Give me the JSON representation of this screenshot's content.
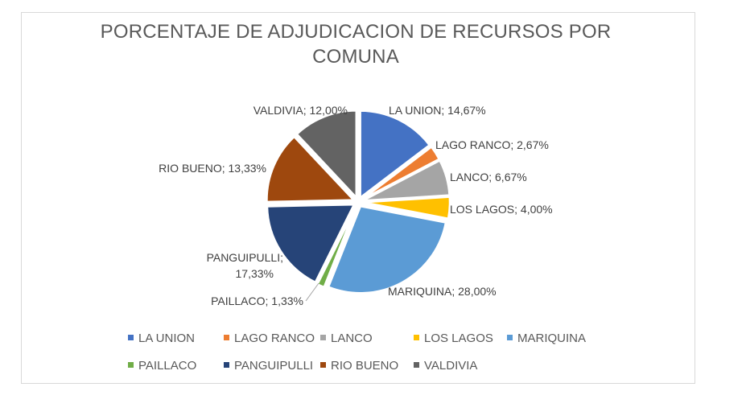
{
  "chart_data": {
    "type": "pie",
    "title_lines": [
      "PORCENTAJE DE ADJUDICACION DE RECURSOS POR",
      "COMUNA"
    ],
    "legend_position": "bottom",
    "exploded": true,
    "slices": [
      {
        "name": "LA UNION",
        "value": 14.67,
        "label": "LA UNION; 14,67%",
        "color": "#4472c4"
      },
      {
        "name": "LAGO RANCO",
        "value": 2.67,
        "label": "LAGO RANCO; 2,67%",
        "color": "#ed7d31"
      },
      {
        "name": "LANCO",
        "value": 6.67,
        "label": "LANCO; 6,67%",
        "color": "#a5a5a5"
      },
      {
        "name": "LOS LAGOS",
        "value": 4.0,
        "label": "LOS LAGOS; 4,00%",
        "color": "#ffc000"
      },
      {
        "name": "MARIQUINA",
        "value": 28.0,
        "label": "MARIQUINA; 28,00%",
        "color": "#5b9bd5"
      },
      {
        "name": "PAILLACO",
        "value": 1.33,
        "label": "PAILLACO; 1,33%",
        "color": "#70ad47"
      },
      {
        "name": "PANGUIPULLI",
        "value": 17.33,
        "label": "PANGUIPULLI; 17,33%",
        "color": "#264478"
      },
      {
        "name": "RIO BUENO",
        "value": 13.33,
        "label": "RIO BUENO; 13,33%",
        "color": "#9e480e"
      },
      {
        "name": "VALDIVIA",
        "value": 12.0,
        "label": "VALDIVIA; 12,00%",
        "color": "#636363"
      }
    ]
  }
}
